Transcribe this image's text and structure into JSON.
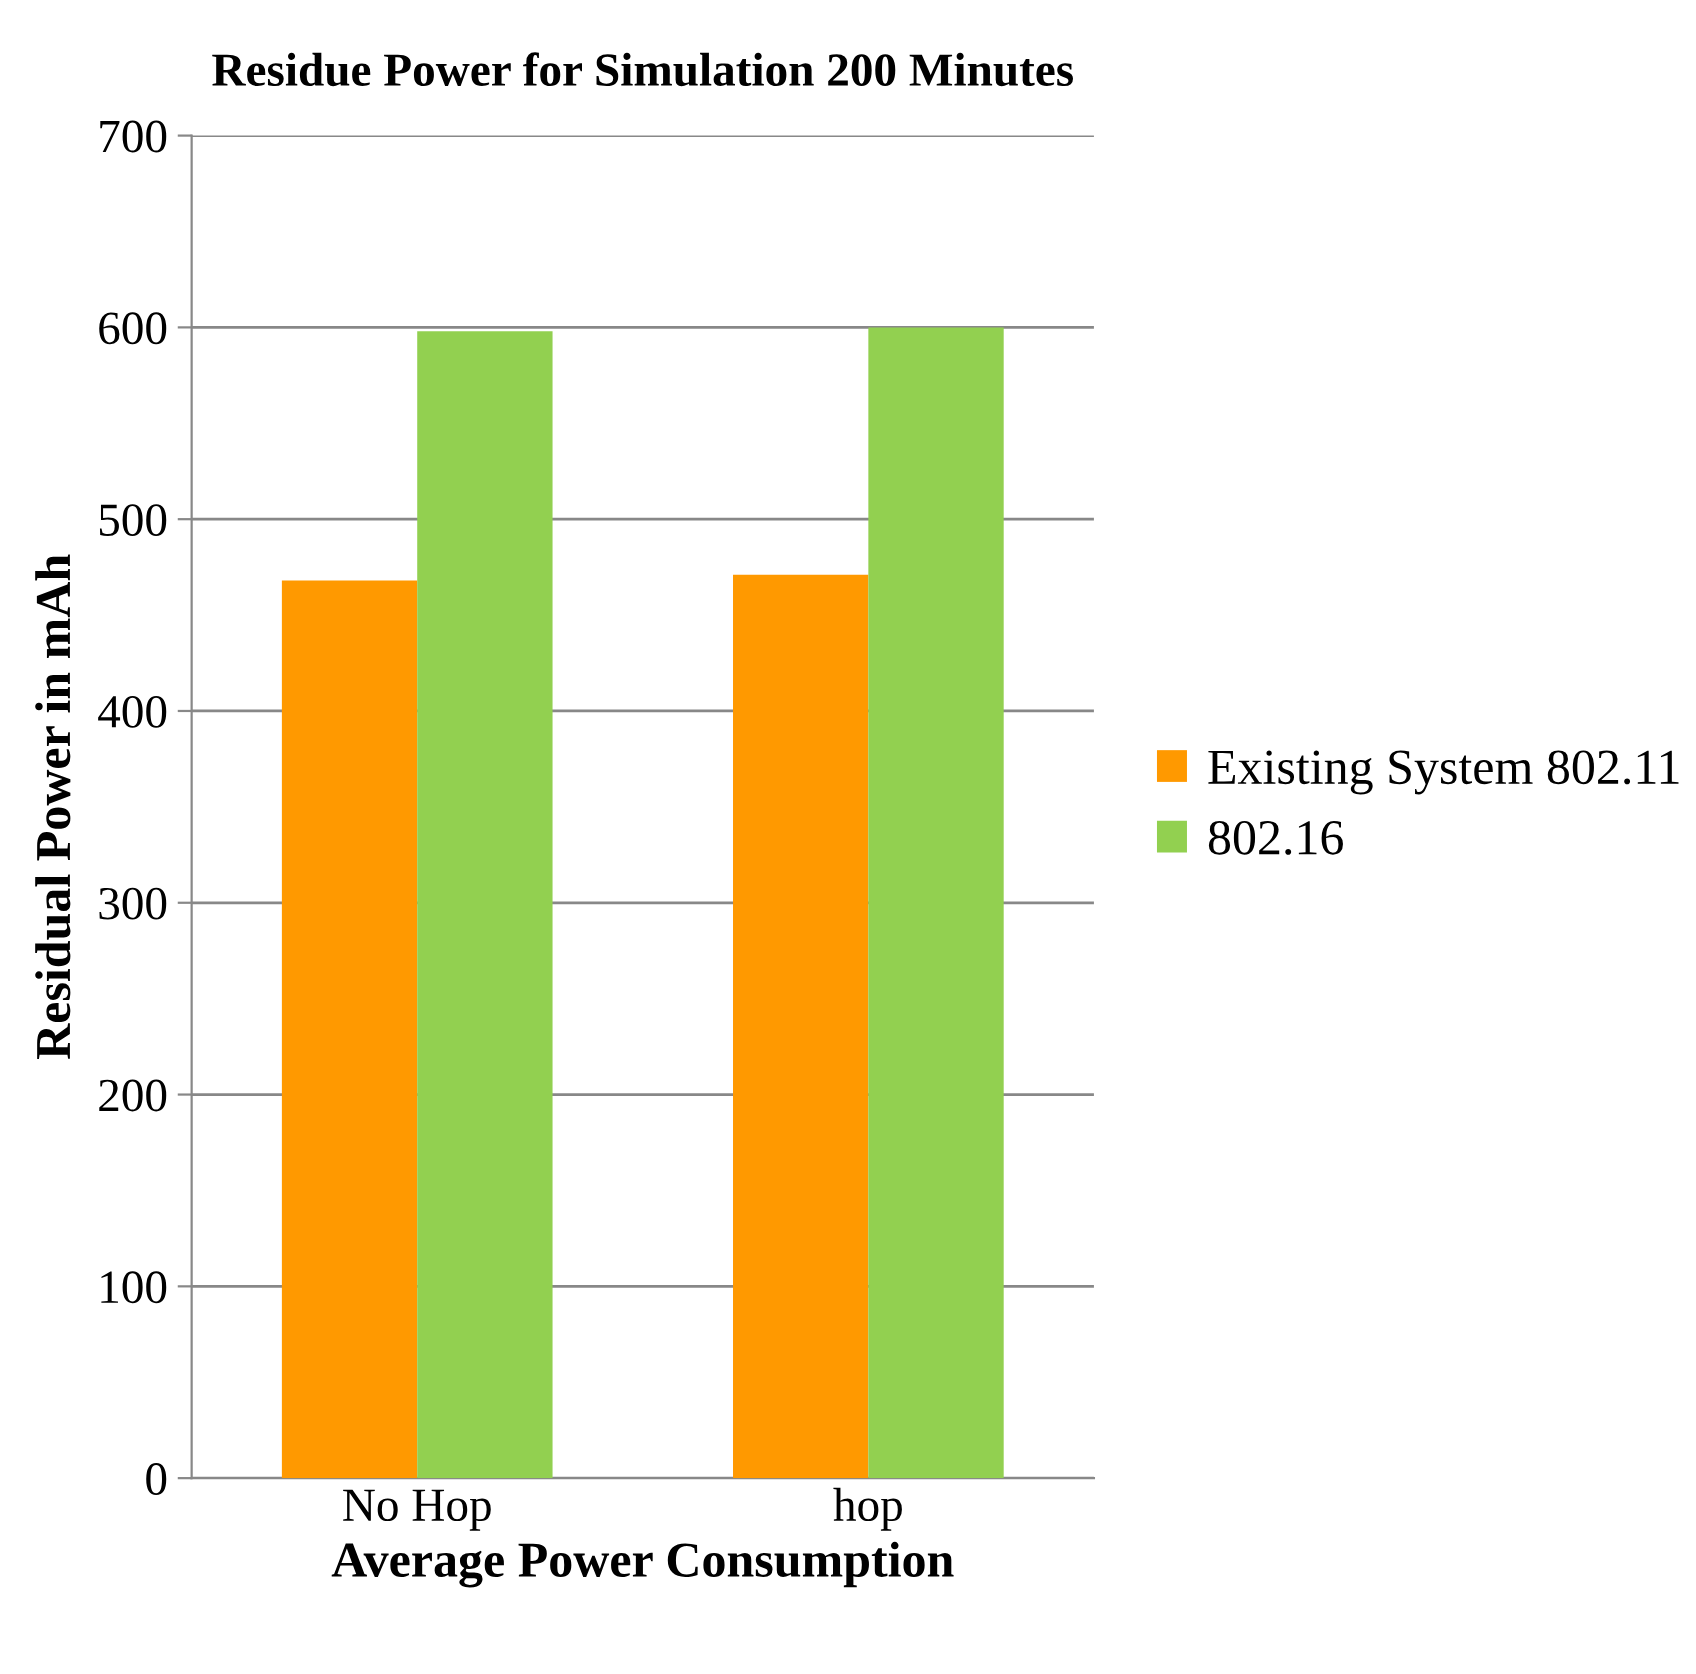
{
  "chart_data": {
    "type": "bar",
    "title": "Residue Power for Simulation 200 Minutes",
    "xlabel": "Average Power Consumption",
    "ylabel": "Residual Power in mAh",
    "categories": [
      "No Hop",
      "hop"
    ],
    "series": [
      {
        "name": "Existing System 802.11",
        "color": "#ff9900",
        "values": [
          468,
          471
        ]
      },
      {
        "name": "802.16",
        "color": "#92d050",
        "values": [
          598,
          600
        ]
      }
    ],
    "ylim": [
      0,
      700
    ],
    "yticks": [
      0,
      100,
      200,
      300,
      400,
      500,
      600,
      700
    ],
    "grid": "y",
    "legend": "right"
  }
}
